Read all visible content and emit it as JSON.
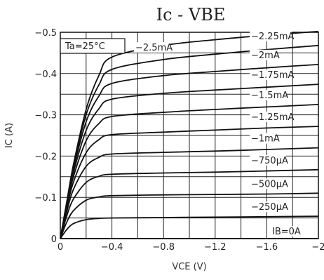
{
  "chart_data": {
    "type": "line",
    "title": "Ic - VBE",
    "xlabel": "VCE (V)",
    "ylabel": "IC (A)",
    "xlim": [
      0,
      -2
    ],
    "ylim": [
      0,
      -0.5
    ],
    "x_ticks": [
      "0",
      "−0.4",
      "−0.8",
      "−1.2",
      "−1.6",
      "−2"
    ],
    "y_ticks": [
      "0",
      "−0.1",
      "−0.2",
      "−0.3",
      "−0.4",
      "−0.5"
    ],
    "grid": true,
    "annotation": "Ta=25°C",
    "series": [
      {
        "name": "IB=0A",
        "values": [
          [
            0,
            0
          ],
          [
            -2,
            0
          ]
        ]
      },
      {
        "name": "−250μA",
        "values": [
          [
            0,
            0
          ],
          [
            -0.05,
            -0.022
          ],
          [
            -0.1,
            -0.036
          ],
          [
            -0.2,
            -0.046
          ],
          [
            -0.3,
            -0.049
          ],
          [
            -0.4,
            -0.05
          ],
          [
            -0.8,
            -0.051
          ],
          [
            -1.2,
            -0.052
          ],
          [
            -1.6,
            -0.053
          ],
          [
            -2,
            -0.054
          ]
        ]
      },
      {
        "name": "−500μA",
        "values": [
          [
            0,
            0
          ],
          [
            -0.05,
            -0.04
          ],
          [
            -0.1,
            -0.067
          ],
          [
            -0.2,
            -0.093
          ],
          [
            -0.3,
            -0.101
          ],
          [
            -0.4,
            -0.104
          ],
          [
            -0.8,
            -0.106
          ],
          [
            -1.2,
            -0.107
          ],
          [
            -1.6,
            -0.108
          ],
          [
            -2,
            -0.11
          ]
        ]
      },
      {
        "name": "−750μA",
        "values": [
          [
            0,
            0
          ],
          [
            -0.05,
            -0.055
          ],
          [
            -0.1,
            -0.095
          ],
          [
            -0.2,
            -0.136
          ],
          [
            -0.3,
            -0.151
          ],
          [
            -0.4,
            -0.156
          ],
          [
            -0.8,
            -0.159
          ],
          [
            -1.2,
            -0.161
          ],
          [
            -1.6,
            -0.164
          ],
          [
            -2,
            -0.167
          ]
        ]
      },
      {
        "name": "−1mA",
        "values": [
          [
            0,
            0
          ],
          [
            -0.05,
            -0.065
          ],
          [
            -0.1,
            -0.118
          ],
          [
            -0.2,
            -0.175
          ],
          [
            -0.3,
            -0.197
          ],
          [
            -0.4,
            -0.205
          ],
          [
            -0.8,
            -0.209
          ],
          [
            -1.2,
            -0.212
          ],
          [
            -1.6,
            -0.216
          ],
          [
            -2,
            -0.22
          ]
        ]
      },
      {
        "name": "−1.25mA",
        "values": [
          [
            0,
            0
          ],
          [
            -0.05,
            -0.073
          ],
          [
            -0.1,
            -0.135
          ],
          [
            -0.2,
            -0.208
          ],
          [
            -0.3,
            -0.24
          ],
          [
            -0.4,
            -0.252
          ],
          [
            -0.8,
            -0.258
          ],
          [
            -1.2,
            -0.263
          ],
          [
            -1.6,
            -0.268
          ],
          [
            -2,
            -0.272
          ]
        ]
      },
      {
        "name": "−1.5mA",
        "values": [
          [
            0,
            0
          ],
          [
            -0.05,
            -0.078
          ],
          [
            -0.1,
            -0.148
          ],
          [
            -0.2,
            -0.237
          ],
          [
            -0.3,
            -0.279
          ],
          [
            -0.4,
            -0.296
          ],
          [
            -0.8,
            -0.306
          ],
          [
            -1.2,
            -0.313
          ],
          [
            -1.6,
            -0.319
          ],
          [
            -2,
            -0.325
          ]
        ]
      },
      {
        "name": "−1.75mA",
        "values": [
          [
            0,
            0
          ],
          [
            -0.05,
            -0.082
          ],
          [
            -0.1,
            -0.158
          ],
          [
            -0.2,
            -0.262
          ],
          [
            -0.3,
            -0.315
          ],
          [
            -0.4,
            -0.338
          ],
          [
            -0.8,
            -0.352
          ],
          [
            -1.2,
            -0.36
          ],
          [
            -1.6,
            -0.367
          ],
          [
            -2,
            -0.374
          ]
        ]
      },
      {
        "name": "−2mA",
        "values": [
          [
            0,
            0
          ],
          [
            -0.05,
            -0.085
          ],
          [
            -0.1,
            -0.166
          ],
          [
            -0.2,
            -0.283
          ],
          [
            -0.3,
            -0.346
          ],
          [
            -0.4,
            -0.376
          ],
          [
            -0.8,
            -0.395
          ],
          [
            -1.2,
            -0.405
          ],
          [
            -1.6,
            -0.414
          ],
          [
            -2,
            -0.422
          ]
        ]
      },
      {
        "name": "−2.25mA",
        "values": [
          [
            0,
            0
          ],
          [
            -0.05,
            -0.087
          ],
          [
            -0.1,
            -0.172
          ],
          [
            -0.2,
            -0.3
          ],
          [
            -0.3,
            -0.373
          ],
          [
            -0.4,
            -0.41
          ],
          [
            -0.8,
            -0.434
          ],
          [
            -1.2,
            -0.447
          ],
          [
            -1.6,
            -0.458
          ],
          [
            -2,
            -0.468
          ]
        ]
      },
      {
        "name": "−2.5mA",
        "values": [
          [
            0,
            0
          ],
          [
            -0.05,
            -0.089
          ],
          [
            -0.1,
            -0.177
          ],
          [
            -0.2,
            -0.313
          ],
          [
            -0.3,
            -0.396
          ],
          [
            -0.4,
            -0.44
          ],
          [
            -0.8,
            -0.468
          ],
          [
            -1.2,
            -0.482
          ],
          [
            -1.6,
            -0.493
          ],
          [
            -2,
            -0.502
          ]
        ]
      }
    ]
  }
}
